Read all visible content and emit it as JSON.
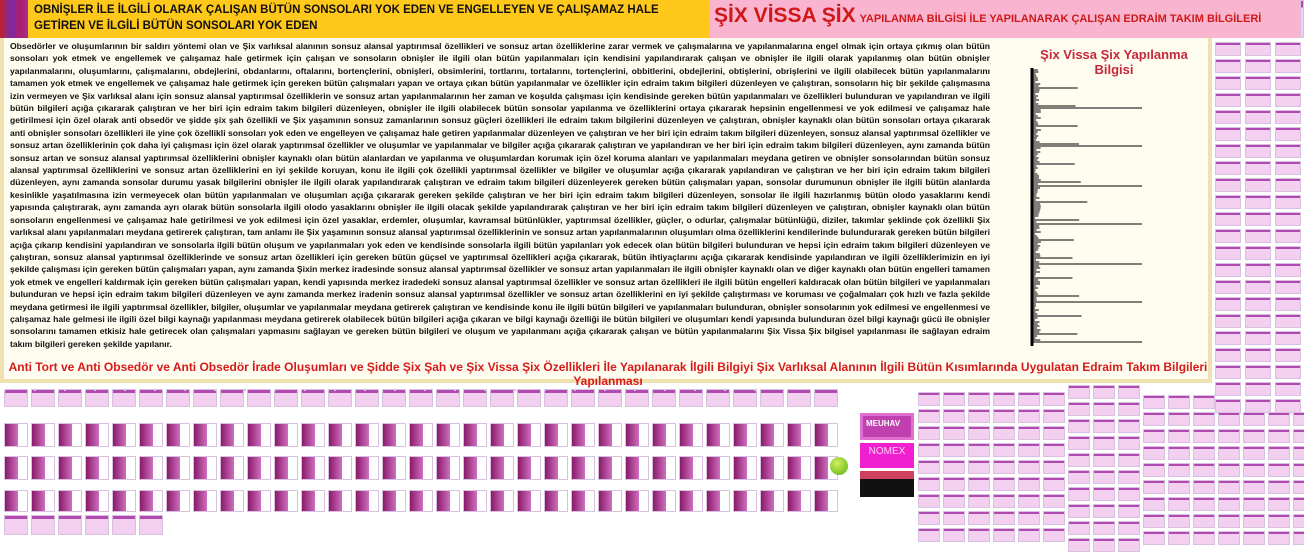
{
  "header": {
    "left_text": "OBNİŞLER İLE İLGİLİ OLARAK ÇALIŞAN BÜTÜN SONSOLARI YOK EDEN VE ENGELLEYEN VE ÇALIŞAMAZ HALE GETİREN VE İLGİLİ BÜTÜN SONSOLARI YOK EDEN",
    "right_big": "ŞİX VİSSA ŞİX",
    "right_small": "YAPILANMA BİLGİSİ İLE YAPILANARAK ÇALIŞAN EDRAİM TAKIM BİLGİLERİ"
  },
  "main": {
    "paragraph": "Obsedörler ve oluşumlarının bir saldırı yöntemi olan ve Şix varlıksal alanının sonsuz alansal yaptırımsal özellikleri ve sonsuz artan özelliklerine zarar vermek ve çalışmalarına ve yapılanmalarına engel olmak için ortaya çıkmış olan bütün sonsoları yok etmek ve engellemek ve çalışamaz hale getirmek için çalışan ve sonsoların obnişler ile ilgili olan bütün yapılanmaları için kendisini yapılandırarak çalışan ve obnişler ile ilgili olarak yapılanmış olan bütün obnişler yapılanmalarını, oluşumlarını, çalışmalarını, obdejlerini, obdanlarını, oftalarını, bortençlerini, obnişleri, obsimlerini, tortlarını, tortalarını, tortençlerini, obbitlerini, obdejlerini, obtişlerini, obrişlerini ve ilgili olabilecek bütün yapılanmalarını tamamen yok etmek ve engellemek ve çalışamaz hale getirmek için gereken bütün çalışmaları yapan ve ortaya çıkan bütün yapılanmalar ve özellikler için edraim takım bilgileri düzenleyen ve çalıştıran, sonsoların hiç bir şekilde çalışmasına izin vermeyen ve Şix varlıksal alanı için sonsuz alansal yaptırımsal özelliklerin ve sonsuz artan yapılanmalarının her zaman ve koşulda çalışması için kendisinde gereken bütün yapılanmaları ve özellikleri bulunduran ve yapılandıran ve ilgili bütün bilgileri açığa çıkararak çalıştıran ve her biri için edraim takım bilgileri düzenleyen, obnişler ile ilgili olabilecek bütün sonsolar yapılanma ve özelliklerini ortaya çıkararak hepsinin engellenmesi ve yok edilmesi ve çalışamaz hale getirilmesi için özel olarak anti obsedör ve şidde şix şah özellikli ve Şix yaşamının sonsuz zamanlarının sonsuz güçleri özellikleri ile edraim takım bilgilerini düzenleyen ve çalıştıran, obnişler kaynaklı olan bütün sonsoları ortaya çıkararak anti obnişler sonsoları özellikleri ile yine çok özellikli sonsoları yok eden ve engelleyen ve çalışamaz hale getiren yapılanmalar düzenleyen ve çalıştıran ve her biri için edraim takım bilgileri düzenleyen, sonsuz alansal yaptırımsal özellikler ve sonsuz artan özelliklerinin çok daha iyi çalışması için özel olarak yaptırımsal özellikler ve oluşumlar ve yapılanmalar ve bilgiler açığa çıkararak çalıştıran ve yapılandıran ve her biri için edraim takım bilgileri düzenleyen, aynı zamanda bütün sonsuz artan ve sonsuz alansal yaptırımsal özelliklerini obnişler kaynaklı olan bütün alanlardan ve yapılanma ve oluşumlardan korumak için özel koruma alanları ve yapılanmaları meydana getiren ve obnişler sonsolarından bütün sonsuz alansal yaptırımsal özelliklerini ve sonsuz artan özelliklerini en iyi şekilde koruyan, konu ile ilgili çok özellikli yaptırımsal özellikler ve bilgiler ve oluşumlar açığa çıkararak yapılandıran ve çalıştıran ve her biri için edraim takım bilgileri düzenleyen, aynı zamanda sonsolar durumu yasak bilgilerini obnişler ile ilgili olarak yapılandırarak çalıştıran ve edraim takım bilgileri düzenleyerek gereken bütün çalışmaları yapan, sonsolar durumunun obnişler ile ilgili bütün alanlarda kesinlikle yaşatılmasına izin vermeyecek olan bütün yapılanmaları ve oluşumları açığa çıkararak gereken şekilde çalıştıran ve her biri için edraim takım bilgileri düzenleyen, sonsolar ile ilgili hazırlanmış bütün olodo yasaklarını kendi yapısında çalıştırarak, aynı zamanda ayrı olarak bütün sonsolarla ilgili olodo yasaklarını obnişler ile ilgili olacak şekilde yapılandırarak çalıştıran ve her biri için edraim takım bilgileri düzenleyen ve çalıştıran, obnişler kaynaklı olan bütün sonsoların engellenmesi ve çalışamaz hale getirilmesi ve yok edilmesi için özel yasaklar, erdemler, oluşumlar, kavramsal bütünlükler, yaptırımsal özellikler, güçler, o odurlar, çalışmalar bütünlüğü, diziler, takımlar şeklinde çok özellikli Şix varlıksal alanı yapılanmaları meydana getirerek çalıştıran, tam anlamı ile Şix yaşamının sonsuz alansal yaptırımsal özelliklerinin ve sonsuz artan yapılanmalarının oluşumları olma özelliklerini kendilerinde bulundurarak gereken bütün bilgileri açığa çıkarıp kendisini yapılandıran ve sonsolarla ilgili bütün oluşum ve yapılanmaları yok eden ve kendisinde sonsolarla ilgili bütün yapılanları yok edecek olan bütün bilgileri bulunduran ve hepsi için edraim takım bilgileri düzenleyen ve çalıştıran, sonsuz alansal yaptırımsal özelliklerinde ve sonsuz artan özellikleri için gereken bütün güçsel ve yaptırımsal özellikleri açığa çıkararak, bütün ihtiyaçlarını açığa çıkararak kendisinde yapılandıran ve ilgili özelliklerimizin en iyi şekilde çalışması için gereken bütün çalışmaları yapan, aynı zamanda Şixin merkez iradesinde sonsuz alansal yaptırımsal özellikler ve sonsuz artan yapılanmaları ile ilgili obnişler kaynaklı olan ve diğer kaynaklı olan bütün engelleri tamamen yok etmek ve engelleri kaldırmak için gereken bütün çalışmaları yapan, kendi yapısında merkez iradedeki sonsuz alansal yaptırımsal özellikler ve sonsuz artan özellikleri ile ilgili bütün engelleri kaldıracak olan bütün bilgileri ve yapılanmaları bulunduran ve hepsi için edraim takım bilgileri düzenleyen ve aynı zamanda merkez iradenin sonsuz alansal yaptırımsal özellikler ve sonsuz artan özelliklerini en iyi şekilde çalıştırması ve koruması ve çoğalmaları çok hızlı ve fazla şekilde meydana getirmesi ile ilgili yaptırımsal özellikler, bilgiler, oluşumlar ve yapılanmalar meydana getirerek çalıştıran ve kendisinde konu ile ilgili bütün bilgileri ve yapılanmaları bulunduran, obnişler sonsolarının yok edilmesi ve engellenmesi ve çalışamaz hale gelmesi ile ilgili özel bilgi kaynağı yapılanması meydana getirerek olabilecek bütün bilgileri açığa çıkaran ve bilgi kaynağı özelliği ile bütün bilgileri ve oluşumları kendi yapısında bulunduran özel bilgi kaynağı gücü ile obnişler sonsolarını tamamen etkisiz hale getirecek olan çalışmaları yapmasını sağlayan ve gereken bütün bilgileri ve oluşum ve yapılanmanı açığa çıkararak çalışan ve bütün yapılanmalarını Şix Vissa Şix bilgisel yapılanması ile sağlayan edraim takım bilgileri gereken şekilde yapılanır.",
    "side_title": "Şix Vissa Şix Yapılanma Bilgisi",
    "bottom_title": "Anti Tort ve Anti Obsedör ve Anti Obsedör İrade Oluşumları ve Şidde Şix Şah ve Şix Vissa Şix Özellikleri İle Yapılanarak İlgili Bilgiyi Şix Varlıksal Alanının İlgili Bütün Kısımlarında Uygulatan Edraim Takım Bilgileri Yapılanması"
  },
  "promos": {
    "brand1": "MEUHAV",
    "brand2": "NOMEX"
  },
  "colors": {
    "orange": "#ffc81a",
    "pink": "#f9b5d0",
    "red": "#d01818",
    "cream": "#fffdf0"
  }
}
